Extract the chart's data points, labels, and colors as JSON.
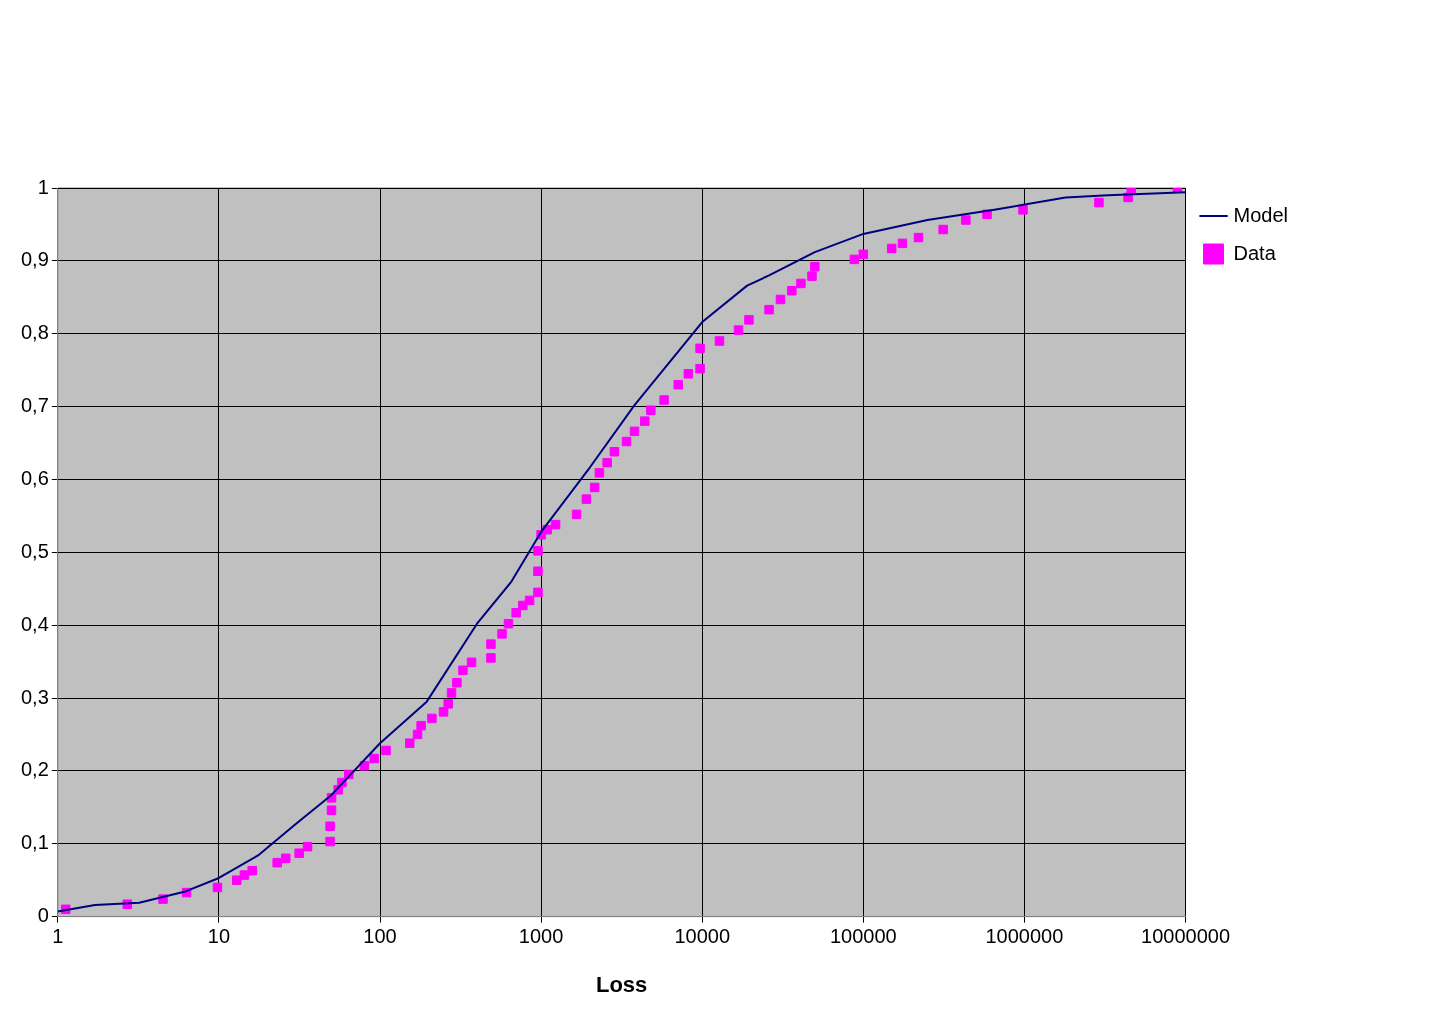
{
  "chart_data": {
    "type": "scatter",
    "xlabel": "Loss",
    "log": "x",
    "grid": true,
    "legend": "right",
    "xlim": [
      1,
      10000000
    ],
    "xticks": [
      1,
      10,
      100,
      1000,
      10000,
      100000,
      1000000,
      10000000
    ],
    "ylim": [
      0,
      1
    ],
    "yticks": [
      0,
      {
        "value": 0.1,
        "label": "0,1"
      },
      {
        "value": 0.2,
        "label": "0,2"
      },
      {
        "value": 0.3,
        "label": "0,3"
      },
      {
        "value": 0.4,
        "label": "0,4"
      },
      {
        "value": 0.5,
        "label": "0,5"
      },
      {
        "value": 0.6,
        "label": "0,6"
      },
      {
        "value": 0.7,
        "label": "0,7"
      },
      {
        "value": 0.8,
        "label": "0,8"
      },
      {
        "value": 0.9,
        "label": "0,9"
      },
      1
    ],
    "series": [
      {
        "name": "Model",
        "type": "line",
        "marker": "none",
        "line_style": "solid",
        "color": "#000080",
        "x": [
          1,
          1.7,
          3.2,
          6.1,
          10,
          17.5,
          30,
          50,
          100,
          195,
          400,
          650,
          1000,
          2000,
          3800,
          10000,
          19000,
          26000,
          50000,
          100000,
          250000,
          650000,
          1800000,
          3300000,
          10000000
        ],
        "values": [
          0.007,
          0.016,
          0.019,
          0.034,
          0.053,
          0.084,
          0.127,
          0.167,
          0.238,
          0.295,
          0.402,
          0.459,
          0.528,
          0.616,
          0.702,
          0.816,
          0.866,
          0.88,
          0.912,
          0.937,
          0.956,
          0.97,
          0.987,
          0.99,
          0.994
        ]
      },
      {
        "name": "Data",
        "marker": "square",
        "color": "#ff00ff",
        "x": [
          1.12,
          2.7,
          4.5,
          6.3,
          9.8,
          12.9,
          14.4,
          16.1,
          23,
          26,
          31.5,
          35.5,
          49,
          49,
          50,
          50,
          55,
          58,
          64,
          80,
          92,
          109,
          153,
          171,
          180,
          210,
          248,
          265,
          278,
          300,
          327,
          370,
          488,
          488,
          572,
          627,
          700,
          770,
          848,
          956,
          956,
          956,
          1000,
          1090,
          1230,
          1660,
          1910,
          2150,
          2300,
          2570,
          2850,
          3390,
          3800,
          4400,
          4800,
          5800,
          7100,
          8200,
          9700,
          9700,
          12800,
          16800,
          19500,
          26000,
          30600,
          36000,
          41000,
          48000,
          50000,
          88000,
          100000,
          150000,
          175000,
          220000,
          313000,
          433000,
          586000,
          980000,
          2900000,
          4400000,
          4600000,
          8900000
        ],
        "values": [
          0.01,
          0.017,
          0.024,
          0.033,
          0.04,
          0.05,
          0.057,
          0.063,
          0.074,
          0.08,
          0.087,
          0.096,
          0.103,
          0.124,
          0.146,
          0.163,
          0.174,
          0.184,
          0.195,
          0.207,
          0.217,
          0.228,
          0.238,
          0.25,
          0.262,
          0.272,
          0.281,
          0.292,
          0.307,
          0.321,
          0.338,
          0.349,
          0.355,
          0.374,
          0.388,
          0.402,
          0.417,
          0.427,
          0.434,
          0.445,
          0.474,
          0.502,
          0.524,
          0.531,
          0.538,
          0.552,
          0.573,
          0.589,
          0.609,
          0.623,
          0.638,
          0.652,
          0.666,
          0.68,
          0.695,
          0.709,
          0.73,
          0.745,
          0.752,
          0.78,
          0.79,
          0.805,
          0.819,
          0.833,
          0.847,
          0.859,
          0.869,
          0.879,
          0.892,
          0.902,
          0.909,
          0.917,
          0.924,
          0.932,
          0.943,
          0.956,
          0.964,
          0.97,
          0.98,
          0.987,
          0.997,
          1.0
        ]
      }
    ]
  }
}
